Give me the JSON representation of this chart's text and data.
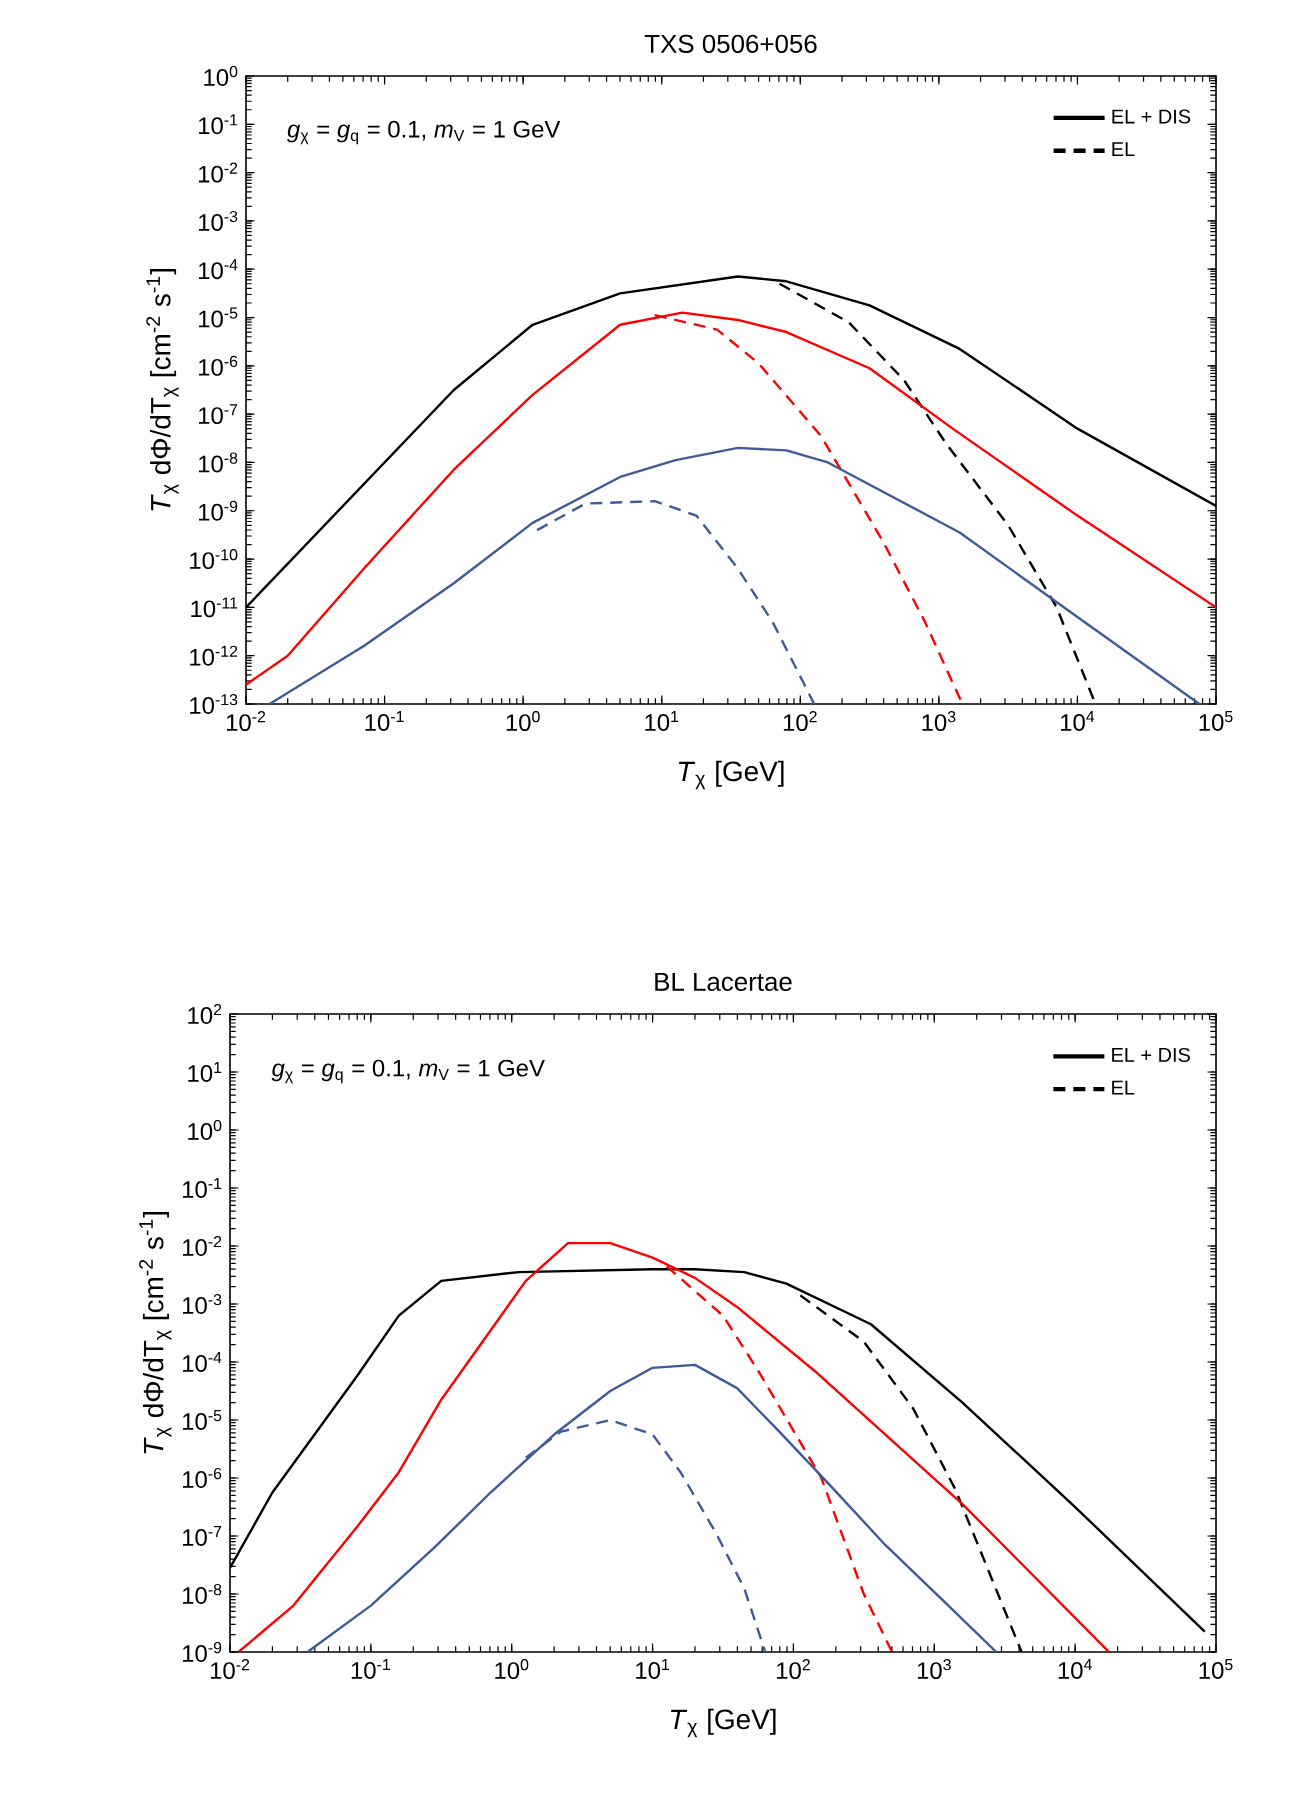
{
  "chart_data": [
    {
      "type": "line",
      "title": "TXS 0506+056",
      "xlabel": "*T*$_{χ}$ [GeV]",
      "ylabel": "*T*$_{χ}$ dΦ/dT$_{χ}$ [cm$^{-2}$ s$^{-1}$]",
      "annotations": [
        "*g*$_{χ}$ = *g*$_{q}$ = 0.1,  *m*$_{V}$ = 1 GeV"
      ],
      "log": "xy",
      "legend": "top right",
      "grid": false,
      "xlim": [
        0.01,
        100000
      ],
      "ylim": [
        1e-13,
        1
      ],
      "xticks": [
        {
          "value": 0.01,
          "label": "10$^{-2}$"
        },
        {
          "value": 0.1,
          "label": "10$^{-1}$"
        },
        {
          "value": 1,
          "label": "10$^{0}$"
        },
        {
          "value": 10,
          "label": "10$^{1}$"
        },
        {
          "value": 100,
          "label": "10$^{2}$"
        },
        {
          "value": 1000,
          "label": "10$^{3}$"
        },
        {
          "value": 10000,
          "label": "10$^{4}$"
        },
        {
          "value": 100000,
          "label": "10$^{5}$"
        }
      ],
      "yticks": [
        {
          "value": 1e-13,
          "label": "10$^{-13}$"
        },
        {
          "value": 1e-12,
          "label": "10$^{-12}$"
        },
        {
          "value": 1e-11,
          "label": "10$^{-11}$"
        },
        {
          "value": 1e-10,
          "label": "10$^{-10}$"
        },
        {
          "value": 1e-09,
          "label": "10$^{-9}$"
        },
        {
          "value": 1e-08,
          "label": "10$^{-8}$"
        },
        {
          "value": 1e-07,
          "label": "10$^{-7}$"
        },
        {
          "value": 1e-06,
          "label": "10$^{-6}$"
        },
        {
          "value": 1e-05,
          "label": "10$^{-5}$"
        },
        {
          "value": 0.0001,
          "label": "10$^{-4}$"
        },
        {
          "value": 0.001,
          "label": "10$^{-3}$"
        },
        {
          "value": 0.01,
          "label": "10$^{-2}$"
        },
        {
          "value": 0.1,
          "label": "10$^{-1}$"
        },
        {
          "value": 1,
          "label": "10$^{0}$"
        }
      ],
      "series": [
        {
          "name": "EL + DIS",
          "color": "#000000",
          "line_style": "solid",
          "x": [
            0.01,
            0.316,
            1.17,
            5.01,
            35.5,
            79.4,
            316,
            1413,
            10000,
            100000
          ],
          "values": [
            1e-11,
            3.16e-07,
            7.08e-06,
            3.16e-05,
            7.08e-05,
            5.62e-05,
            1.78e-05,
            2.24e-06,
            5.01e-08,
            1.26e-09
          ]
        },
        {
          "name": "EL",
          "color": "#000000",
          "line_style": "dashed",
          "x": [
            70.8,
            224,
            562,
            1122,
            3162,
            7079,
            13490
          ],
          "values": [
            5.01e-05,
            7.94e-06,
            5.01e-07,
            2.51e-08,
            5.01e-10,
            1e-11,
            1e-13
          ]
        },
        {
          "color": "#ff0000",
          "line_style": "solid",
          "x": [
            0.01,
            0.02,
            0.0708,
            0.316,
            1.17,
            5.01,
            14.1,
            35.5,
            79.4,
            316,
            1259,
            10000,
            100000
          ],
          "values": [
            2.51e-13,
            1e-12,
            6.31e-11,
            7.08e-09,
            2.51e-07,
            7.08e-06,
            1.26e-05,
            8.91e-06,
            5.01e-06,
            8.91e-07,
            5.01e-08,
            7.94e-10,
            1e-11
          ]
        },
        {
          "color": "#ff0000",
          "line_style": "dashed",
          "x": [
            8.91,
            25.1,
            50.1,
            141,
            398,
            794,
            1479
          ],
          "values": [
            1.12e-05,
            5.62e-06,
            1.12e-06,
            3.55e-08,
            2.24e-10,
            5.01e-12,
            1e-13
          ]
        },
        {
          "color": "#3f5a98",
          "line_style": "solid",
          "x": [
            0.0148,
            0.0708,
            0.316,
            1.17,
            5.01,
            12.6,
            35.5,
            79.4,
            158,
            1413,
            10000,
            75900
          ],
          "values": [
            1e-13,
            1.58e-12,
            3.16e-11,
            5.62e-10,
            5.01e-09,
            1.12e-08,
            2e-08,
            1.78e-08,
            1e-08,
            3.55e-10,
            6.31e-12,
            1e-13
          ]
        },
        {
          "color": "#3f5a98",
          "line_style": "dashed",
          "x": [
            1.26,
            2.82,
            8.91,
            17.8,
            35.5,
            63.1,
            126
          ],
          "values": [
            3.98e-10,
            1.41e-09,
            1.58e-09,
            7.94e-10,
            6.31e-11,
            5.01e-12,
            1e-13
          ]
        }
      ]
    },
    {
      "type": "line",
      "title": "BL Lacertae",
      "xlabel": "*T*$_{χ}$ [GeV]",
      "ylabel": "*T*$_{χ}$ dΦ/dT$_{χ}$ [cm$^{-2}$ s$^{-1}$]",
      "annotations": [
        "*g*$_{χ}$ = *g*$_{q}$ = 0.1,  *m*$_{V}$ = 1 GeV"
      ],
      "log": "xy",
      "legend": "top right",
      "grid": false,
      "xlim": [
        0.01,
        100000
      ],
      "ylim": [
        1e-09,
        100
      ],
      "xticks": [
        {
          "value": 0.01,
          "label": "10$^{-2}$"
        },
        {
          "value": 0.1,
          "label": "10$^{-1}$"
        },
        {
          "value": 1,
          "label": "10$^{0}$"
        },
        {
          "value": 10,
          "label": "10$^{1}$"
        },
        {
          "value": 100,
          "label": "10$^{2}$"
        },
        {
          "value": 1000,
          "label": "10$^{3}$"
        },
        {
          "value": 10000,
          "label": "10$^{4}$"
        },
        {
          "value": 100000,
          "label": "10$^{5}$"
        }
      ],
      "yticks": [
        {
          "value": 1e-09,
          "label": "10$^{-9}$"
        },
        {
          "value": 1e-08,
          "label": "10$^{-8}$"
        },
        {
          "value": 1e-07,
          "label": "10$^{-7}$"
        },
        {
          "value": 1e-06,
          "label": "10$^{-6}$"
        },
        {
          "value": 1e-05,
          "label": "10$^{-5}$"
        },
        {
          "value": 0.0001,
          "label": "10$^{-4}$"
        },
        {
          "value": 0.001,
          "label": "10$^{-3}$"
        },
        {
          "value": 0.01,
          "label": "10$^{-2}$"
        },
        {
          "value": 0.1,
          "label": "10$^{-1}$"
        },
        {
          "value": 1,
          "label": "10$^{0}$"
        },
        {
          "value": 10,
          "label": "10$^{1}$"
        },
        {
          "value": 100,
          "label": "10$^{2}$"
        }
      ],
      "series": [
        {
          "name": "EL + DIS",
          "color": "#000000",
          "line_style": "solid",
          "x": [
            0.01,
            0.02,
            0.0794,
            0.158,
            0.316,
            1.12,
            10,
            20,
            44.7,
            89.1,
            355,
            1585,
            10000,
            83200
          ],
          "values": [
            2.82e-08,
            5.62e-07,
            5.62e-05,
            0.000631,
            0.00251,
            0.00355,
            0.00398,
            0.00398,
            0.00355,
            0.00224,
            0.000447,
            2e-05,
            3.16e-07,
            2.24e-09
          ]
        },
        {
          "name": "EL",
          "color": "#000000",
          "line_style": "dashed",
          "x": [
            112,
            316,
            708,
            1413,
            4169
          ],
          "values": [
            0.00141,
            0.000224,
            1.58e-05,
            6.31e-07,
            1e-09
          ]
        },
        {
          "color": "#ff0000",
          "line_style": "solid",
          "x": [
            0.0115,
            0.0282,
            0.0794,
            0.158,
            0.316,
            1.26,
            2.51,
            5.01,
            10,
            20,
            39.8,
            141,
            1585,
            17400
          ],
          "values": [
            1e-09,
            6.31e-09,
            1.41e-07,
            1.26e-06,
            2.24e-05,
            0.00251,
            0.0112,
            0.0112,
            0.00631,
            0.00282,
            0.000891,
            7.08e-05,
            3.55e-07,
            1e-09
          ]
        },
        {
          "color": "#ff0000",
          "line_style": "dashed",
          "x": [
            12.6,
            31.6,
            56.2,
            158,
            316,
            501
          ],
          "values": [
            0.00447,
            0.000631,
            7.08e-05,
            1e-06,
            1e-08,
            1e-09
          ]
        },
        {
          "color": "#3f5a98",
          "line_style": "solid",
          "x": [
            0.0355,
            0.1,
            0.282,
            0.708,
            2.0,
            5.01,
            10,
            20,
            39.8,
            79.4,
            178,
            447,
            1259,
            2754
          ],
          "values": [
            1e-09,
            6.31e-09,
            6.31e-08,
            5.62e-07,
            5.62e-06,
            3.16e-05,
            7.94e-05,
            8.91e-05,
            3.55e-05,
            6.31e-06,
            7.94e-07,
            7.08e-08,
            6.31e-09,
            1e-09
          ]
        },
        {
          "color": "#3f5a98",
          "line_style": "dashed",
          "x": [
            1.26,
            2.24,
            5.01,
            10,
            15.8,
            28.2,
            44.7,
            63.1
          ],
          "values": [
            2.24e-06,
            6.31e-06,
            1e-05,
            5.62e-06,
            1.26e-06,
            1.12e-07,
            1.26e-08,
            1e-09
          ]
        }
      ]
    }
  ]
}
